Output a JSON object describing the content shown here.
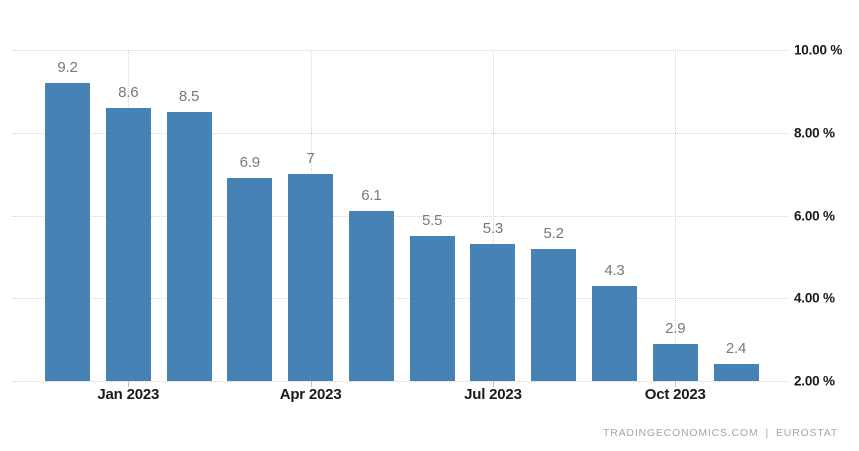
{
  "chart_data": {
    "type": "bar",
    "title": "",
    "values": [
      9.2,
      8.6,
      8.5,
      6.9,
      7,
      6.1,
      5.5,
      5.3,
      5.2,
      4.3,
      2.9,
      2.4
    ],
    "value_labels": [
      "9.2",
      "8.6",
      "8.5",
      "6.9",
      "7",
      "6.1",
      "5.5",
      "5.3",
      "5.2",
      "4.3",
      "2.9",
      "2.4"
    ],
    "x_ticks": [
      {
        "index": 1,
        "label": "Jan 2023"
      },
      {
        "index": 4,
        "label": "Apr 2023"
      },
      {
        "index": 7,
        "label": "Jul 2023"
      },
      {
        "index": 10,
        "label": "Oct 2023"
      }
    ],
    "y_ticks": [
      {
        "value": 10,
        "label": "10.00 %"
      },
      {
        "value": 8,
        "label": "8.00 %"
      },
      {
        "value": 6,
        "label": "6.00 %"
      },
      {
        "value": 4,
        "label": "4.00 %"
      },
      {
        "value": 2,
        "label": "2.00 %"
      }
    ],
    "ylim": [
      2,
      10
    ],
    "grid": "dotted",
    "legend": false,
    "colors": {
      "bar": "#4682b4",
      "value_label": "#79797c",
      "axis_label": "#1a1a1e",
      "gridline": "#d4d4d4"
    }
  },
  "footer": {
    "site": "TRADINGECONOMICS.COM",
    "separator": "|",
    "source": "EUROSTAT"
  }
}
